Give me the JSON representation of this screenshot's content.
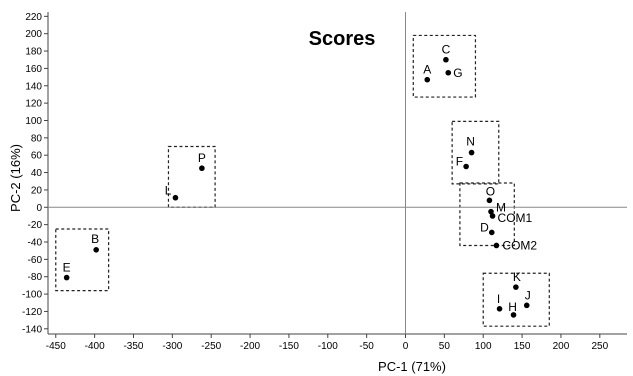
{
  "chart_data": {
    "type": "scatter",
    "title": "Scores",
    "xlabel": "PC-1 (71%)",
    "ylabel": "PC-2 (16%)",
    "xlim": [
      -460,
      285
    ],
    "ylim": [
      -146,
      225
    ],
    "xticks": [
      -450,
      -400,
      -350,
      -300,
      -250,
      -200,
      -150,
      -100,
      -50,
      0,
      50,
      100,
      150,
      200,
      250
    ],
    "yticks": [
      -140,
      -120,
      -100,
      -80,
      -60,
      -40,
      -20,
      0,
      20,
      40,
      60,
      80,
      100,
      120,
      140,
      160,
      180,
      200,
      220
    ],
    "grid": false,
    "reference_lines": {
      "x": 0,
      "y": 0
    },
    "points": [
      {
        "label": "A",
        "x": 28,
        "y": 147
      },
      {
        "label": "C",
        "x": 52,
        "y": 170
      },
      {
        "label": "G",
        "x": 55,
        "y": 155
      },
      {
        "label": "N",
        "x": 85,
        "y": 63
      },
      {
        "label": "F",
        "x": 78,
        "y": 47
      },
      {
        "label": "P",
        "x": -262,
        "y": 45
      },
      {
        "label": "L",
        "x": -296,
        "y": 11
      },
      {
        "label": "O",
        "x": 108,
        "y": 8
      },
      {
        "label": "M",
        "x": 110,
        "y": -5
      },
      {
        "label": "COM1",
        "x": 112,
        "y": -10
      },
      {
        "label": "D",
        "x": 111,
        "y": -29
      },
      {
        "label": "COM2",
        "x": 117,
        "y": -44
      },
      {
        "label": "B",
        "x": -398,
        "y": -49
      },
      {
        "label": "E",
        "x": -436,
        "y": -81
      },
      {
        "label": "K",
        "x": 142,
        "y": -92
      },
      {
        "label": "J",
        "x": 156,
        "y": -113
      },
      {
        "label": "I",
        "x": 121,
        "y": -117
      },
      {
        "label": "H",
        "x": 139,
        "y": -124
      }
    ],
    "groups": [
      {
        "x": [
          10,
          90
        ],
        "y": [
          127,
          198
        ]
      },
      {
        "x": [
          -245,
          -305
        ],
        "y": [
          70,
          0
        ]
      },
      {
        "x": [
          -382,
          -450
        ],
        "y": [
          -25,
          -96
        ]
      },
      {
        "x": [
          60,
          120
        ],
        "y": [
          27,
          99
        ]
      },
      {
        "x": [
          70,
          140
        ],
        "y": [
          -44,
          28
        ]
      },
      {
        "x": [
          100,
          185
        ],
        "y": [
          -76,
          -137
        ]
      }
    ]
  }
}
